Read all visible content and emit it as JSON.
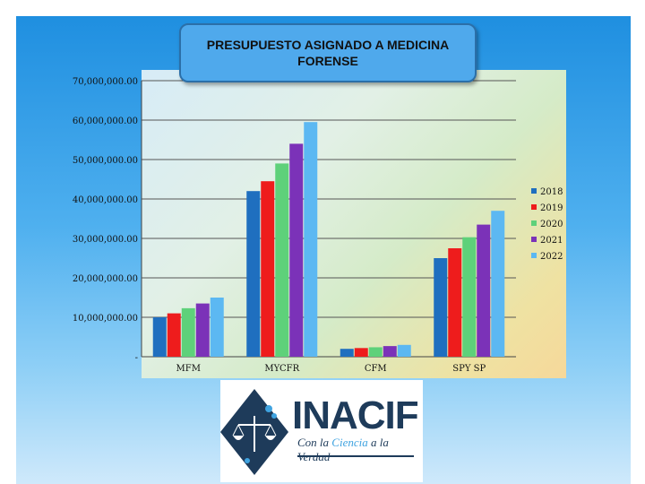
{
  "slide": {
    "title": "PRESUPUESTO ASIGNADO A MEDICINA FORENSE"
  },
  "chart_data": {
    "type": "bar",
    "title": "PRESUPUESTO ASIGNADO A MEDICINA FORENSE",
    "xlabel": "",
    "ylabel": "",
    "categories": [
      "MFM",
      "MYCFR",
      "CFM",
      "SPY SP"
    ],
    "ylim": [
      0,
      70000000
    ],
    "yticks": [
      0,
      10000000,
      20000000,
      30000000,
      40000000,
      50000000,
      60000000,
      70000000
    ],
    "ytick_labels": [
      "-",
      "10,000,000.00",
      "20,000,000.00",
      "30,000,000.00",
      "40,000,000.00",
      "50,000,000.00",
      "60,000,000.00",
      "70,000,000.00"
    ],
    "grid": true,
    "legend_position": "right",
    "series": [
      {
        "name": "2018",
        "color": "#1f6fbf",
        "values": [
          10000000,
          42000000,
          2000000,
          25000000
        ]
      },
      {
        "name": "2019",
        "color": "#ee1c1c",
        "values": [
          11000000,
          44500000,
          2200000,
          27500000
        ]
      },
      {
        "name": "2020",
        "color": "#5ed17a",
        "values": [
          12300000,
          49000000,
          2400000,
          30300000
        ]
      },
      {
        "name": "2021",
        "color": "#7b32b8",
        "values": [
          13500000,
          54000000,
          2700000,
          33500000
        ]
      },
      {
        "name": "2022",
        "color": "#5cb8f2",
        "values": [
          15000000,
          59500000,
          3000000,
          37000000
        ]
      }
    ]
  },
  "logo": {
    "name": "INACIF",
    "tagline_pre": "Con la ",
    "tagline_highlight": "Ciencia",
    "tagline_post": " a la Verdad"
  }
}
